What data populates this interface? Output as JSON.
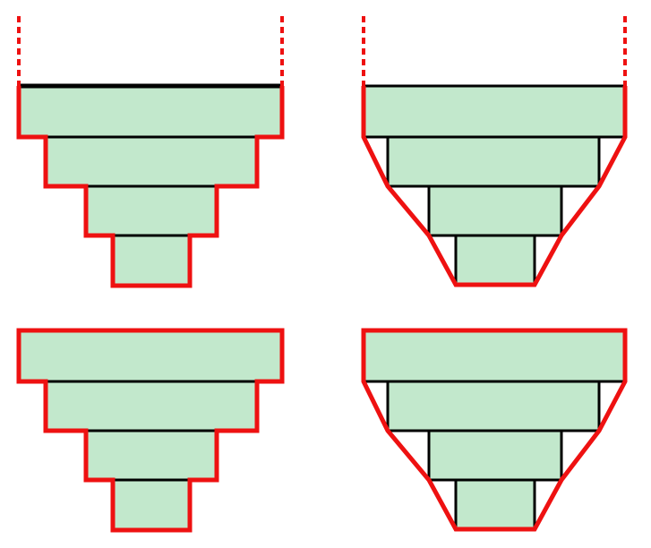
{
  "colors": {
    "fill": "#c2e8cc",
    "outline": "#ee1111",
    "edge": "#000000",
    "background": "#ffffff"
  },
  "panels": [
    {
      "name": "open-stepped",
      "outline_style": "stepped",
      "top_open": true
    },
    {
      "name": "open-chamfered",
      "outline_style": "chamfered",
      "top_open": true
    },
    {
      "name": "closed-stepped",
      "outline_style": "stepped",
      "top_open": false
    },
    {
      "name": "closed-chamfered",
      "outline_style": "chamfered",
      "top_open": false
    }
  ]
}
